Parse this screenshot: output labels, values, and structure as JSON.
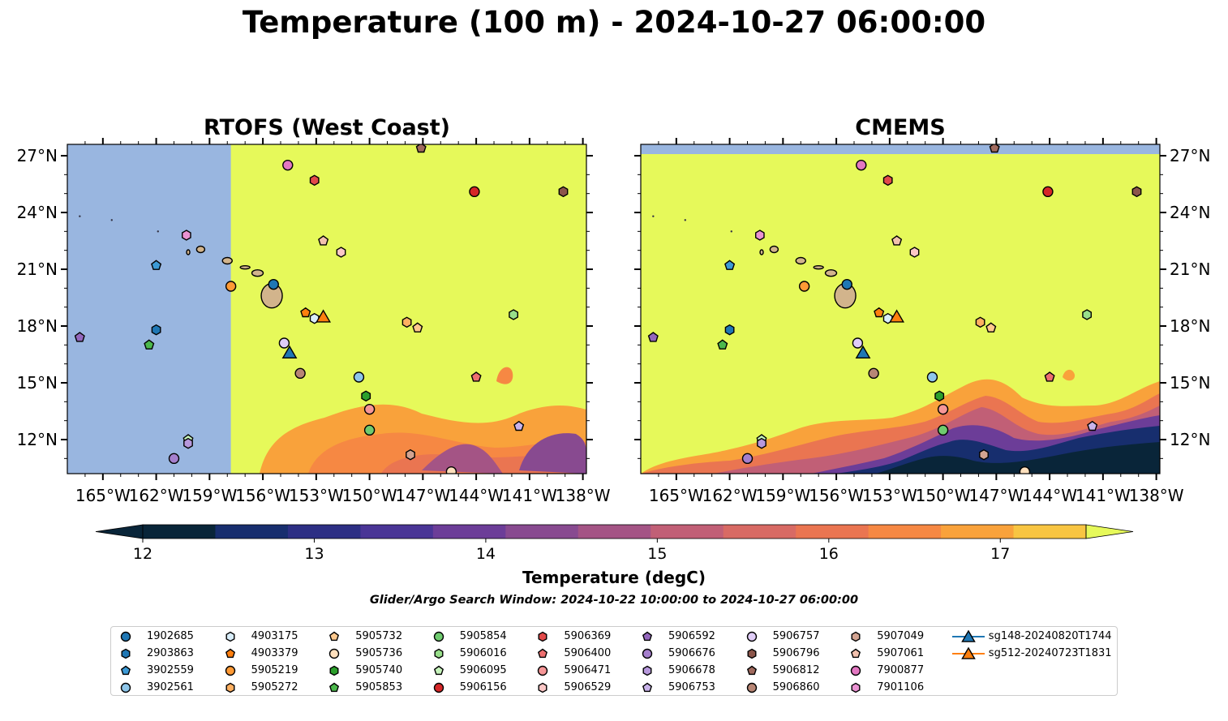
{
  "title": "Temperature (100 m) - 2024-10-27 06:00:00",
  "panels": [
    {
      "title": "RTOFS (West Coast)"
    },
    {
      "title": "CMEMS"
    }
  ],
  "map": {
    "lon_range": [
      -167,
      -137.8
    ],
    "lat_range": [
      10.2,
      27.6
    ],
    "lon_ticks": [
      "165°W",
      "162°W",
      "159°W",
      "156°W",
      "153°W",
      "150°W",
      "147°W",
      "144°W",
      "141°W",
      "138°W"
    ],
    "lat_ticks": [
      "12°N",
      "15°N",
      "18°N",
      "21°N",
      "24°N",
      "27°N"
    ],
    "ocean_fill_color": "#e6f95a",
    "nodata_color": "#99b6e0",
    "land_color": "#d2b48c"
  },
  "colorbar": {
    "label": "Temperature (degC)",
    "ticks": [
      "12",
      "13",
      "14",
      "15",
      "16",
      "17"
    ],
    "range": [
      12,
      17.5
    ],
    "extend": "both",
    "colors": [
      "#092539",
      "#172e6e",
      "#2d2f84",
      "#4a3596",
      "#6c3d98",
      "#884a90",
      "#a45485",
      "#c15f76",
      "#d86a64",
      "#ea7551",
      "#f68843",
      "#f9a23b",
      "#f8c542",
      "#e6f95a"
    ]
  },
  "search_window": "Glider/Argo Search Window: 2024-10-22 10:00:00 to 2024-10-27 06:00:00",
  "legend": [
    {
      "label": "1902685",
      "marker": "circle",
      "color": "#1f77b4"
    },
    {
      "label": "2903863",
      "marker": "hexagon",
      "color": "#1f77b4"
    },
    {
      "label": "3902559",
      "marker": "pentagon",
      "color": "#3c9ad6"
    },
    {
      "label": "3902561",
      "marker": "circle",
      "color": "#8ec6ea"
    },
    {
      "label": "4903175",
      "marker": "hexagon",
      "color": "#d9eefb"
    },
    {
      "label": "4903379",
      "marker": "pentagon",
      "color": "#ff7f0e"
    },
    {
      "label": "5905219",
      "marker": "circle",
      "color": "#ff9a35"
    },
    {
      "label": "5905272",
      "marker": "hexagon",
      "color": "#ffb061"
    },
    {
      "label": "5905732",
      "marker": "pentagon",
      "color": "#ffc98e"
    },
    {
      "label": "5905736",
      "marker": "circle",
      "color": "#ffe0bd"
    },
    {
      "label": "5905740",
      "marker": "hexagon",
      "color": "#2ca02c"
    },
    {
      "label": "5905853",
      "marker": "pentagon",
      "color": "#4cb84c"
    },
    {
      "label": "5905854",
      "marker": "circle",
      "color": "#6fcb6f"
    },
    {
      "label": "5906016",
      "marker": "hexagon",
      "color": "#98df8a"
    },
    {
      "label": "5906095",
      "marker": "pentagon",
      "color": "#c6f3bb"
    },
    {
      "label": "5906156",
      "marker": "circle",
      "color": "#d62728"
    },
    {
      "label": "5906369",
      "marker": "hexagon",
      "color": "#e24a4a"
    },
    {
      "label": "5906400",
      "marker": "pentagon",
      "color": "#ed6f6f"
    },
    {
      "label": "5906471",
      "marker": "circle",
      "color": "#f69697"
    },
    {
      "label": "5906529",
      "marker": "hexagon",
      "color": "#fcc7c6"
    },
    {
      "label": "5906592",
      "marker": "pentagon",
      "color": "#9467bd"
    },
    {
      "label": "5906676",
      "marker": "circle",
      "color": "#a57fcd"
    },
    {
      "label": "5906678",
      "marker": "hexagon",
      "color": "#b798dc"
    },
    {
      "label": "5906753",
      "marker": "pentagon",
      "color": "#c9b3ea"
    },
    {
      "label": "5906757",
      "marker": "circle",
      "color": "#e0cdf7"
    },
    {
      "label": "5906796",
      "marker": "hexagon",
      "color": "#8c564b"
    },
    {
      "label": "5906812",
      "marker": "pentagon",
      "color": "#a06a5e"
    },
    {
      "label": "5906860",
      "marker": "circle",
      "color": "#b88675"
    },
    {
      "label": "5907049",
      "marker": "hexagon",
      "color": "#d2a391"
    },
    {
      "label": "5907061",
      "marker": "pentagon",
      "color": "#f2c1ae"
    },
    {
      "label": "7900877",
      "marker": "circle",
      "color": "#e377c2"
    },
    {
      "label": "7901106",
      "marker": "hexagon",
      "color": "#ea92d2"
    },
    {
      "label": "sg148-20240820T1744",
      "marker": "triangle",
      "color": "#1f77b4"
    },
    {
      "label": "sg512-20240723T1831",
      "marker": "triangle",
      "color": "#ff7f0e"
    }
  ],
  "observations": [
    {
      "id": "1902685",
      "lon": -155.4,
      "lat": 20.2
    },
    {
      "id": "2903863",
      "lon": -162.0,
      "lat": 17.8
    },
    {
      "id": "3902559",
      "lon": -162.0,
      "lat": 21.2
    },
    {
      "id": "3902561",
      "lon": -150.6,
      "lat": 15.3
    },
    {
      "id": "4903175",
      "lon": -153.1,
      "lat": 18.4
    },
    {
      "id": "4903379",
      "lon": -153.6,
      "lat": 18.7
    },
    {
      "id": "5905219",
      "lon": -157.8,
      "lat": 20.1
    },
    {
      "id": "5905272",
      "lon": -147.9,
      "lat": 18.2
    },
    {
      "id": "5905732",
      "lon": -147.3,
      "lat": 17.9
    },
    {
      "id": "5905736",
      "lon": -145.4,
      "lat": 10.3
    },
    {
      "id": "5905740",
      "lon": -150.2,
      "lat": 14.3
    },
    {
      "id": "5905853",
      "lon": -162.4,
      "lat": 17.0
    },
    {
      "id": "5905854",
      "lon": -150.0,
      "lat": 12.5
    },
    {
      "id": "5906016",
      "lon": -141.9,
      "lat": 18.6
    },
    {
      "id": "5906095",
      "lon": -160.2,
      "lat": 12.0
    },
    {
      "id": "5906156",
      "lon": -144.1,
      "lat": 25.1
    },
    {
      "id": "5906369",
      "lon": -153.1,
      "lat": 25.7
    },
    {
      "id": "5906400",
      "lon": -144.0,
      "lat": 15.3
    },
    {
      "id": "5906471",
      "lon": -150.0,
      "lat": 13.6
    },
    {
      "id": "5906529",
      "lon": -151.6,
      "lat": 21.9
    },
    {
      "id": "5906592",
      "lon": -166.3,
      "lat": 17.4
    },
    {
      "id": "5906676",
      "lon": -161.0,
      "lat": 11.0
    },
    {
      "id": "5906678",
      "lon": -160.2,
      "lat": 11.8
    },
    {
      "id": "5906753",
      "lon": -141.6,
      "lat": 12.7
    },
    {
      "id": "5906757",
      "lon": -154.8,
      "lat": 17.1
    },
    {
      "id": "5906796",
      "lon": -139.1,
      "lat": 25.1
    },
    {
      "id": "5906812",
      "lon": -147.1,
      "lat": 27.4
    },
    {
      "id": "5906860",
      "lon": -153.9,
      "lat": 15.5
    },
    {
      "id": "5907049",
      "lon": -147.7,
      "lat": 11.2
    },
    {
      "id": "5907061",
      "lon": -152.6,
      "lat": 22.5
    },
    {
      "id": "7900877",
      "lon": -154.6,
      "lat": 26.5
    },
    {
      "id": "7901106",
      "lon": -160.3,
      "lat": 22.8
    },
    {
      "id": "sg148-20240820T1744",
      "lon": -154.5,
      "lat": 16.6
    },
    {
      "id": "sg512-20240723T1831",
      "lon": -152.6,
      "lat": 18.5
    }
  ]
}
